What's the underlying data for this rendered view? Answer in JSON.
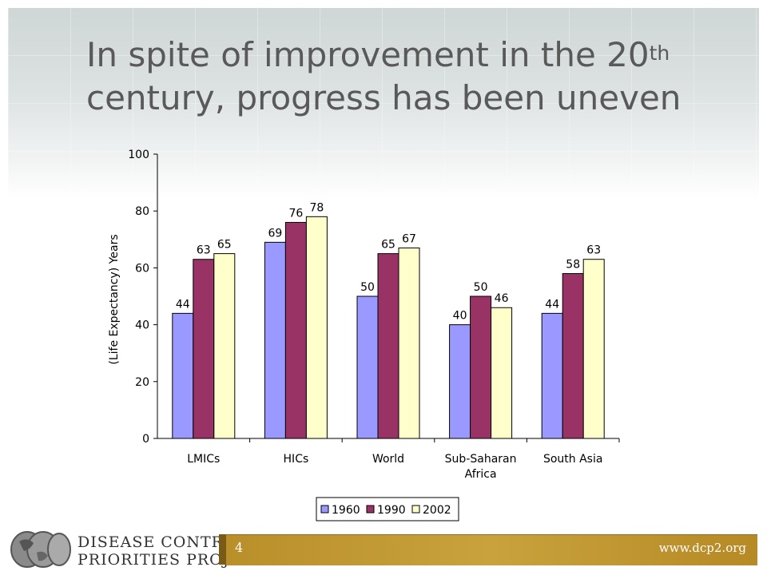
{
  "slide": {
    "title_part1": "In spite of improvement in the 20",
    "title_sup": "th",
    "title_part2": "century, progress has been uneven",
    "page_number": "4",
    "website": "www.dcp2.org",
    "logo_line1": "DISEASE CONTROL",
    "logo_line2": "PRIORITIES PROJECT"
  },
  "colors": {
    "series_1960": "#9999ff",
    "series_1990": "#993366",
    "series_2002": "#ffffcc",
    "footer_gold": "#c9a23d"
  },
  "chart_data": {
    "type": "bar",
    "ylabel": "(Life Expectancy) Years",
    "ylim": [
      0,
      100
    ],
    "yticks": [
      0,
      20,
      40,
      60,
      80,
      100
    ],
    "categories": [
      [
        "LMICs"
      ],
      [
        "HICs"
      ],
      [
        "World"
      ],
      [
        "Sub-Saharan",
        "Africa"
      ],
      [
        "South Asia"
      ]
    ],
    "series": [
      {
        "name": "1960",
        "values": [
          44,
          69,
          50,
          40,
          44
        ]
      },
      {
        "name": "1990",
        "values": [
          63,
          76,
          65,
          50,
          58
        ]
      },
      {
        "name": "2002",
        "values": [
          65,
          78,
          67,
          46,
          63
        ]
      }
    ],
    "legend_position": "bottom",
    "grid": false
  }
}
